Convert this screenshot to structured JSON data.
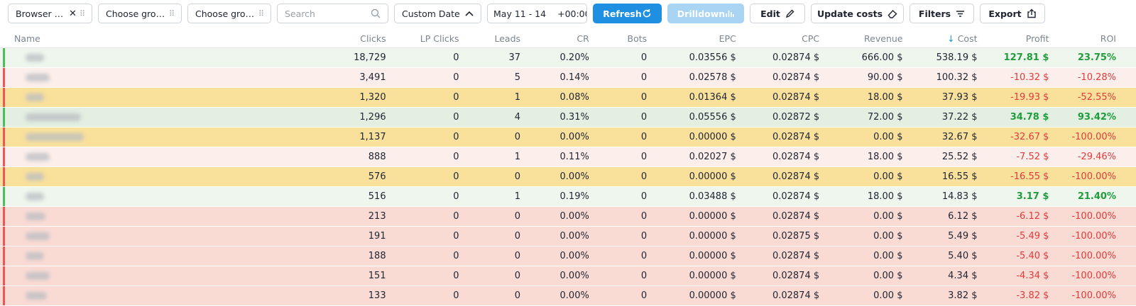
{
  "toolbar": {
    "group1_label": "Browser ver...",
    "group2_label": "Choose grou...",
    "group3_label": "Choose grou...",
    "search_placeholder": "Search",
    "date_preset": "Custom Date",
    "date_range": "May 11 - 14",
    "timezone": "+00:00",
    "refresh": "Refresh",
    "drilldown": "Drilldown",
    "edit": "Edit",
    "update_costs": "Update costs",
    "filters": "Filters",
    "export": "Export"
  },
  "table": {
    "columns": {
      "name": "Name",
      "clicks": "Clicks",
      "lp_clicks": "LP Clicks",
      "leads": "Leads",
      "cr": "CR",
      "bots": "Bots",
      "epc": "EPC",
      "cpc": "CPC",
      "revenue": "Revenue",
      "cost": "Cost",
      "profit": "Profit",
      "roi": "ROI"
    },
    "sorted_by": "Cost",
    "rows": [
      {
        "status": "green",
        "stripe": "#4cbf5a",
        "clicks": "18,729",
        "lp": "0",
        "leads": "37",
        "cr": "0.20%",
        "bots": "0",
        "epc": "0.03556 $",
        "cpc": "0.02874 $",
        "revenue": "666.00 $",
        "cost": "538.19 $",
        "profit": "127.81 $",
        "roi": "23.75%",
        "sign": "pos"
      },
      {
        "status": "pink",
        "stripe": "#e85a5a",
        "clicks": "3,491",
        "lp": "0",
        "leads": "5",
        "cr": "0.14%",
        "bots": "0",
        "epc": "0.02578 $",
        "cpc": "0.02874 $",
        "revenue": "90.00 $",
        "cost": "100.32 $",
        "profit": "-10.32 $",
        "roi": "-10.28%",
        "sign": "neg"
      },
      {
        "status": "yellow",
        "stripe": "#e85a5a",
        "clicks": "1,320",
        "lp": "0",
        "leads": "1",
        "cr": "0.08%",
        "bots": "0",
        "epc": "0.01364 $",
        "cpc": "0.02874 $",
        "revenue": "18.00 $",
        "cost": "37.93 $",
        "profit": "-19.93 $",
        "roi": "-52.55%",
        "sign": "neg"
      },
      {
        "status": "lightgreen",
        "stripe": "#4cbf5a",
        "clicks": "1,296",
        "lp": "0",
        "leads": "4",
        "cr": "0.31%",
        "bots": "0",
        "epc": "0.05556 $",
        "cpc": "0.02872 $",
        "revenue": "72.00 $",
        "cost": "37.22 $",
        "profit": "34.78 $",
        "roi": "93.42%",
        "sign": "pos"
      },
      {
        "status": "yellow",
        "stripe": "#e85a5a",
        "clicks": "1,137",
        "lp": "0",
        "leads": "0",
        "cr": "0.00%",
        "bots": "0",
        "epc": "0.00000 $",
        "cpc": "0.02874 $",
        "revenue": "0.00 $",
        "cost": "32.67 $",
        "profit": "-32.67 $",
        "roi": "-100.00%",
        "sign": "neg"
      },
      {
        "status": "pink",
        "stripe": "#e85a5a",
        "clicks": "888",
        "lp": "0",
        "leads": "1",
        "cr": "0.11%",
        "bots": "0",
        "epc": "0.02027 $",
        "cpc": "0.02874 $",
        "revenue": "18.00 $",
        "cost": "25.52 $",
        "profit": "-7.52 $",
        "roi": "-29.46%",
        "sign": "neg"
      },
      {
        "status": "yellow",
        "stripe": "#e85a5a",
        "clicks": "576",
        "lp": "0",
        "leads": "0",
        "cr": "0.00%",
        "bots": "0",
        "epc": "0.00000 $",
        "cpc": "0.02874 $",
        "revenue": "0.00 $",
        "cost": "16.55 $",
        "profit": "-16.55 $",
        "roi": "-100.00%",
        "sign": "neg"
      },
      {
        "status": "green",
        "stripe": "#4cbf5a",
        "clicks": "516",
        "lp": "0",
        "leads": "1",
        "cr": "0.19%",
        "bots": "0",
        "epc": "0.03488 $",
        "cpc": "0.02874 $",
        "revenue": "18.00 $",
        "cost": "14.83 $",
        "profit": "3.17 $",
        "roi": "21.40%",
        "sign": "pos"
      },
      {
        "status": "red",
        "stripe": "#e85a5a",
        "clicks": "213",
        "lp": "0",
        "leads": "0",
        "cr": "0.00%",
        "bots": "0",
        "epc": "0.00000 $",
        "cpc": "0.02874 $",
        "revenue": "0.00 $",
        "cost": "6.12 $",
        "profit": "-6.12 $",
        "roi": "-100.00%",
        "sign": "neg"
      },
      {
        "status": "red",
        "stripe": "#e85a5a",
        "clicks": "191",
        "lp": "0",
        "leads": "0",
        "cr": "0.00%",
        "bots": "0",
        "epc": "0.00000 $",
        "cpc": "0.02875 $",
        "revenue": "0.00 $",
        "cost": "5.49 $",
        "profit": "-5.49 $",
        "roi": "-100.00%",
        "sign": "neg"
      },
      {
        "status": "red",
        "stripe": "#e85a5a",
        "clicks": "188",
        "lp": "0",
        "leads": "0",
        "cr": "0.00%",
        "bots": "0",
        "epc": "0.00000 $",
        "cpc": "0.02874 $",
        "revenue": "0.00 $",
        "cost": "5.40 $",
        "profit": "-5.40 $",
        "roi": "-100.00%",
        "sign": "neg"
      },
      {
        "status": "red",
        "stripe": "#e85a5a",
        "clicks": "151",
        "lp": "0",
        "leads": "0",
        "cr": "0.00%",
        "bots": "0",
        "epc": "0.00000 $",
        "cpc": "0.02874 $",
        "revenue": "0.00 $",
        "cost": "4.34 $",
        "profit": "-4.34 $",
        "roi": "-100.00%",
        "sign": "neg"
      },
      {
        "status": "red",
        "stripe": "#e85a5a",
        "clicks": "133",
        "lp": "0",
        "leads": "0",
        "cr": "0.00%",
        "bots": "0",
        "epc": "0.00000 $",
        "cpc": "0.02874 $",
        "revenue": "0.00 $",
        "cost": "3.82 $",
        "profit": "-3.82 $",
        "roi": "-100.00%",
        "sign": "neg"
      }
    ]
  }
}
